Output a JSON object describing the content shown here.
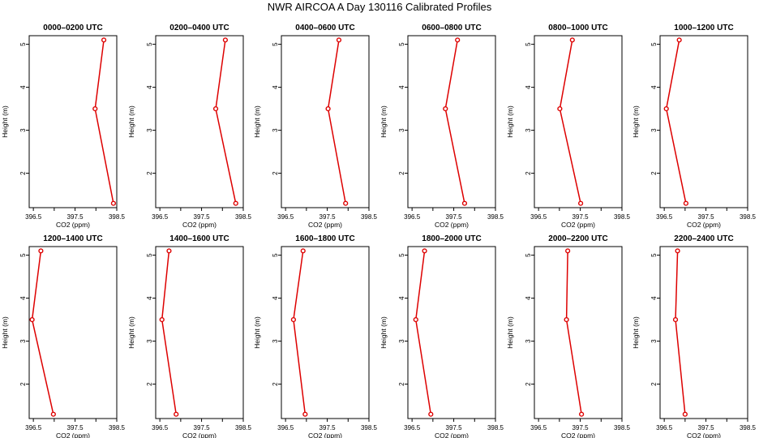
{
  "title": "NWR AIRCOA A  Day 130116  Calibrated Profiles",
  "chart_data": {
    "type": "line",
    "xlabel": "CO2 (ppm)",
    "ylabel": "Height (m)",
    "x_ticks": [
      "396.5",
      "397.5",
      "398.5"
    ],
    "y_ticks": [
      "2",
      "3",
      "4",
      "5"
    ],
    "xlim": [
      396.4,
      398.5
    ],
    "ylim": [
      1.2,
      5.2
    ],
    "line_color": "#dd0000",
    "heights": [
      1.3,
      3.5,
      5.1
    ],
    "panels": [
      {
        "title": "0000–0200 UTC",
        "values": [
          398.42,
          397.98,
          398.19
        ]
      },
      {
        "title": "0200–0400 UTC",
        "values": [
          398.32,
          397.84,
          398.07
        ]
      },
      {
        "title": "0400–0600 UTC",
        "values": [
          397.94,
          397.52,
          397.78
        ]
      },
      {
        "title": "0600–0800 UTC",
        "values": [
          397.76,
          397.3,
          397.59
        ]
      },
      {
        "title": "0800–1000 UTC",
        "values": [
          397.51,
          397.01,
          397.31
        ]
      },
      {
        "title": "1000–1200 UTC",
        "values": [
          397.02,
          396.55,
          396.86
        ]
      },
      {
        "title": "1200–1400 UTC",
        "values": [
          396.98,
          396.47,
          396.68
        ]
      },
      {
        "title": "1400–1600 UTC",
        "values": [
          396.89,
          396.55,
          396.72
        ]
      },
      {
        "title": "1600–1800 UTC",
        "values": [
          396.97,
          396.69,
          396.92
        ]
      },
      {
        "title": "1800–2000 UTC",
        "values": [
          396.95,
          396.59,
          396.8
        ]
      },
      {
        "title": "2000–2200 UTC",
        "values": [
          397.53,
          397.17,
          397.2
        ]
      },
      {
        "title": "2200–2400 UTC",
        "values": [
          397.0,
          396.77,
          396.82
        ]
      }
    ]
  }
}
